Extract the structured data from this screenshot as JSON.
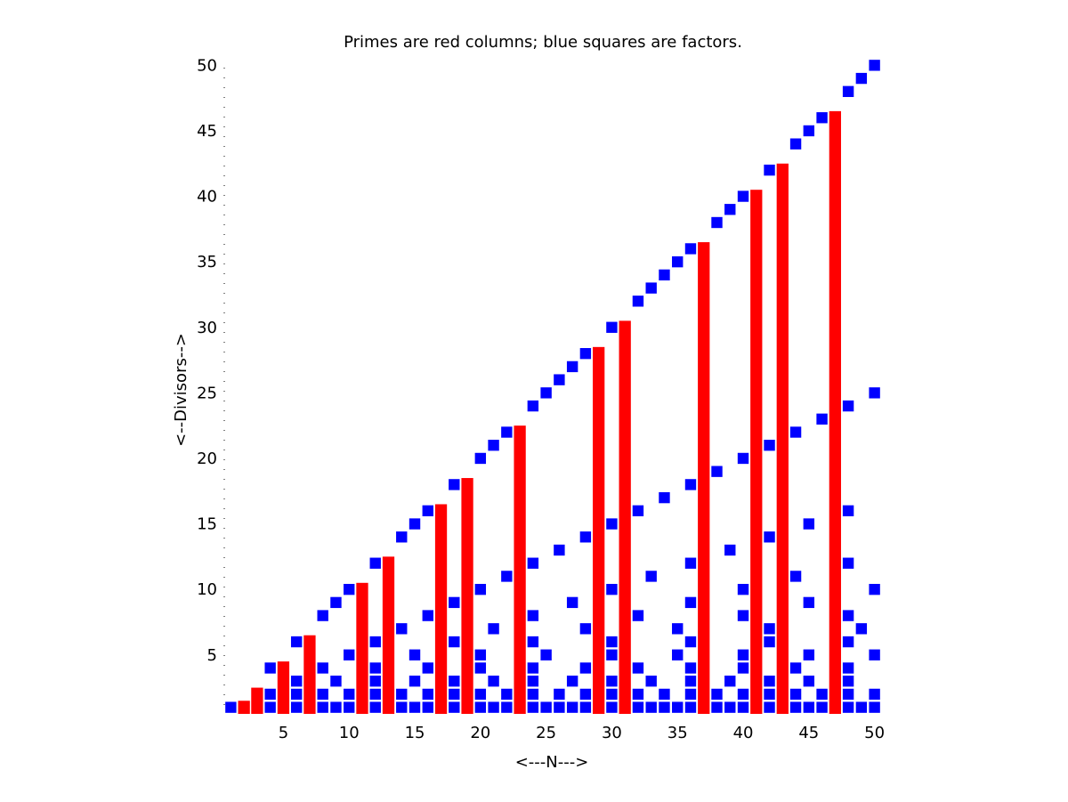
{
  "chart_data": {
    "type": "scatter",
    "title": "Primes are red columns; blue squares are factors.",
    "xlabel": "<---N--->",
    "ylabel": "<--Divisors-->",
    "xlim": [
      0.5,
      50.5
    ],
    "ylim": [
      0.5,
      50.5
    ],
    "x_ticks": [
      5,
      10,
      15,
      20,
      25,
      30,
      35,
      40,
      45,
      50
    ],
    "y_ticks": [
      5,
      10,
      15,
      20,
      25,
      30,
      35,
      40,
      45,
      50
    ],
    "grid": false,
    "n_max": 50,
    "primes": [
      2,
      3,
      5,
      7,
      11,
      13,
      17,
      19,
      23,
      29,
      31,
      37,
      41,
      43,
      47
    ],
    "colors": {
      "prime_column": "#ff0000",
      "factor_square": "#0000ff",
      "axis": "#000000"
    },
    "series": [
      {
        "name": "primes",
        "mark": "red column",
        "x": [
          2,
          3,
          5,
          7,
          11,
          13,
          17,
          19,
          23,
          29,
          31,
          37,
          41,
          43,
          47
        ]
      },
      {
        "name": "factors",
        "mark": "blue square",
        "rule": "square at (N, d) for every divisor d of N, N = 1..50, excluding prime columns"
      }
    ]
  }
}
